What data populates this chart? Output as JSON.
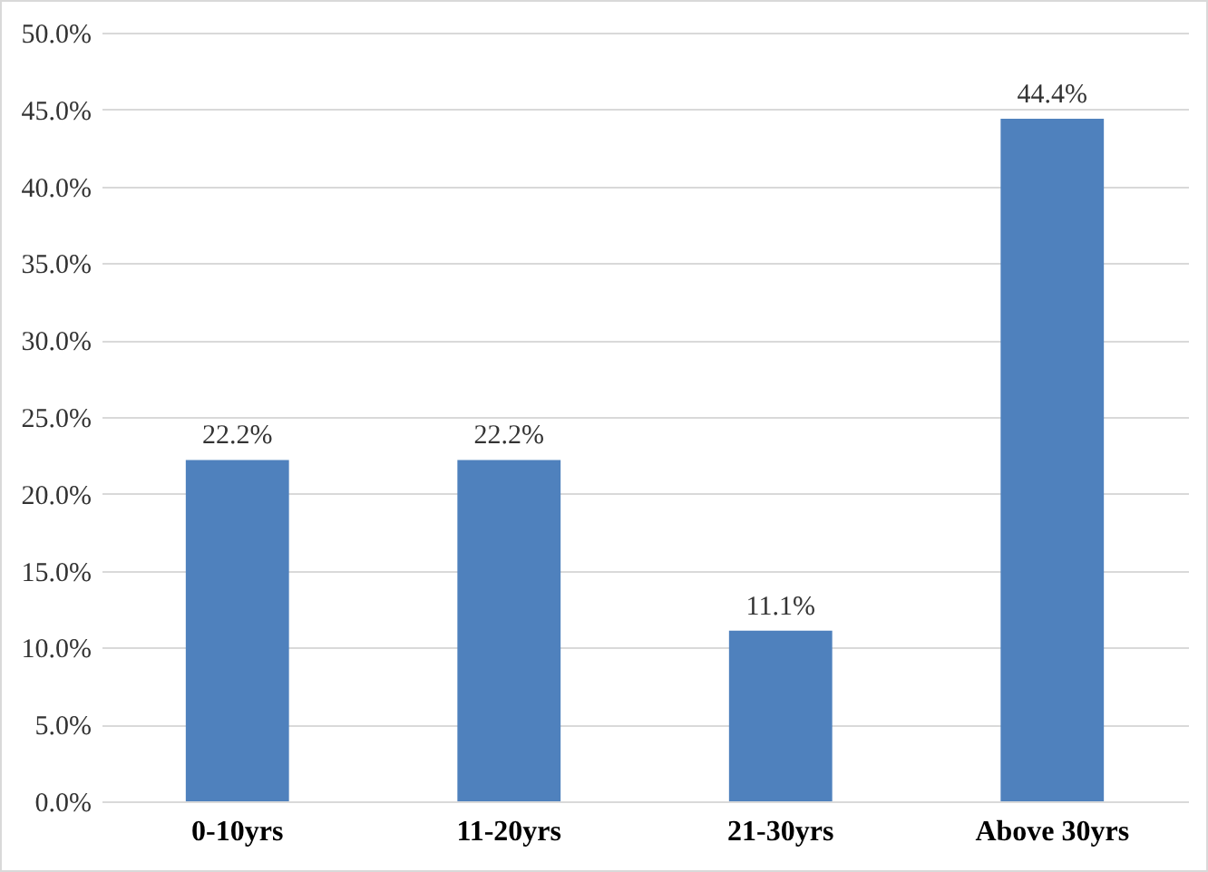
{
  "chart_data": {
    "type": "bar",
    "categories": [
      "0-10yrs",
      "11-20yrs",
      "21-30yrs",
      "Above 30yrs"
    ],
    "values": [
      22.2,
      22.2,
      11.1,
      44.4
    ],
    "value_labels": [
      "22.2%",
      "22.2%",
      "11.1%",
      "44.4%"
    ],
    "color": "#4f81bd",
    "ylim": [
      0,
      50
    ],
    "yticks": [
      {
        "value": 0,
        "label": "0.0%"
      },
      {
        "value": 5,
        "label": "5.0%"
      },
      {
        "value": 10,
        "label": "10.0%"
      },
      {
        "value": 15,
        "label": "15.0%"
      },
      {
        "value": 20,
        "label": "20.0%"
      },
      {
        "value": 25,
        "label": "25.0%"
      },
      {
        "value": 30,
        "label": "30.0%"
      },
      {
        "value": 35,
        "label": "35.0%"
      },
      {
        "value": 40,
        "label": "40.0%"
      },
      {
        "value": 45,
        "label": "45.0%"
      },
      {
        "value": 50,
        "label": "50.0%"
      }
    ],
    "grid": "y"
  }
}
